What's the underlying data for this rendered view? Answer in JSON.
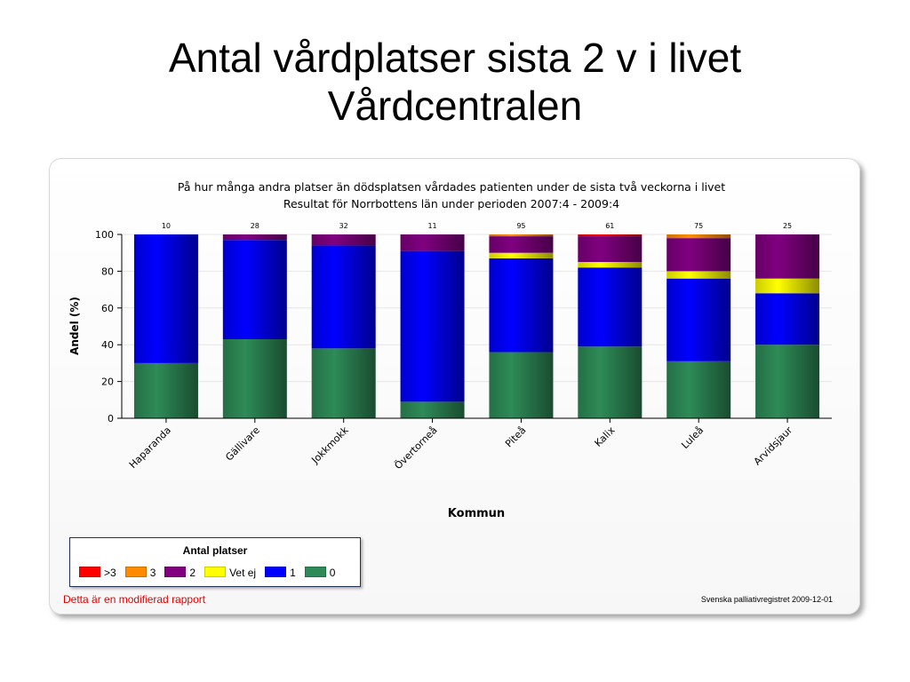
{
  "slide": {
    "title_line1": "Antal vårdplatser sista 2 v i livet",
    "title_line2": "Vårdcentralen"
  },
  "chart_data": {
    "type": "bar",
    "stacked": true,
    "title": "På hur många andra platser än dödsplatsen vårdades patienten under de sista två veckorna i livet",
    "subtitle": "Resultat för Norrbottens län under perioden 2007:4 - 2009:4",
    "xlabel": "Kommun",
    "ylabel": "Andel (%)",
    "ylim": [
      0,
      100
    ],
    "yticks": [
      0,
      20,
      40,
      60,
      80,
      100
    ],
    "categories": [
      "Haparanda",
      "Gällivare",
      "Jokkmokk",
      "Övertorneå",
      "Piteå",
      "Kalix",
      "Luleå",
      "Arvidsjaur"
    ],
    "counts": [
      10,
      28,
      32,
      11,
      95,
      61,
      75,
      25
    ],
    "legend_title": "Antal platser",
    "legend_position": "bottom-left",
    "grid": true,
    "series": [
      {
        "name": "0",
        "color": "#2e8b57",
        "values": [
          30,
          43,
          38,
          9,
          36,
          39,
          31,
          40
        ]
      },
      {
        "name": "1",
        "color": "#0000ff",
        "values": [
          70,
          54,
          56,
          82,
          51,
          43,
          45,
          28
        ]
      },
      {
        "name": "Vet ej",
        "color": "#ffff00",
        "values": [
          0,
          0,
          0,
          0,
          3,
          3,
          4,
          8
        ]
      },
      {
        "name": "2",
        "color": "#800080",
        "values": [
          0,
          3,
          6,
          9,
          9,
          14,
          18,
          24
        ]
      },
      {
        "name": "3",
        "color": "#ff8c00",
        "values": [
          0,
          0,
          0,
          0,
          1,
          0,
          2,
          0
        ]
      },
      {
        "name": ">3",
        "color": "#ff0000",
        "values": [
          0,
          0,
          0,
          0,
          0,
          1,
          0,
          0
        ]
      }
    ]
  },
  "legend_order": [
    ">3",
    "3",
    "2",
    "Vet ej",
    "1",
    "0"
  ],
  "footer": {
    "note": "Detta är en modifierad rapport",
    "source": "Svenska palliativregistret 2009-12-01"
  }
}
